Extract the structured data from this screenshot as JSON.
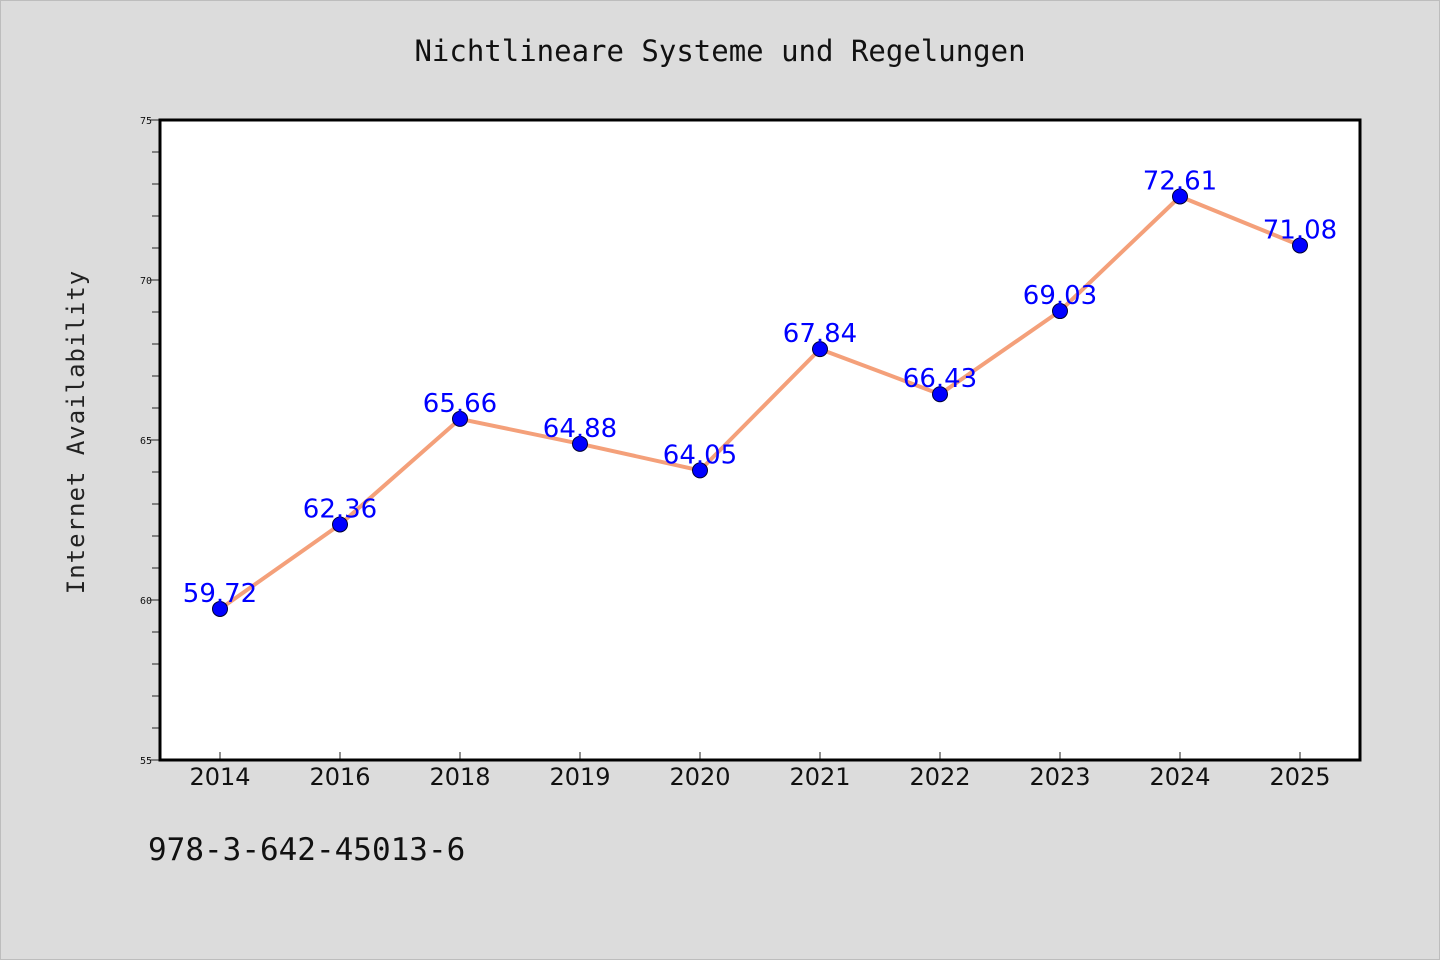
{
  "chart_data": {
    "type": "line",
    "title": "Nichtlineare Systeme und Regelungen",
    "xlabel": "",
    "ylabel": "Internet Availability",
    "categories": [
      "2014",
      "2016",
      "2018",
      "2019",
      "2020",
      "2021",
      "2022",
      "2023",
      "2024",
      "2025"
    ],
    "series": [
      {
        "values": [
          59.72,
          62.36,
          65.66,
          64.88,
          64.05,
          67.84,
          66.43,
          69.03,
          72.61,
          71.08
        ],
        "line_color": "#f4a07a",
        "marker_color": "#0000ff"
      }
    ],
    "data_labels": [
      "59.72",
      "62.36",
      "65.66",
      "64.88",
      "64.05",
      "67.84",
      "66.43",
      "69.03",
      "72.61",
      "71.08"
    ],
    "ylim": [
      55,
      75
    ],
    "yticks": [
      55,
      60,
      65,
      70,
      75
    ],
    "grid": false,
    "legend": "none",
    "colors": {
      "background": "#dcdcdc",
      "plot_area": "#ffffff",
      "line": "#f4a07a",
      "marker": "#0000ff",
      "label": "#0000ff"
    }
  },
  "footer": {
    "isbn": "978-3-642-45013-6"
  }
}
